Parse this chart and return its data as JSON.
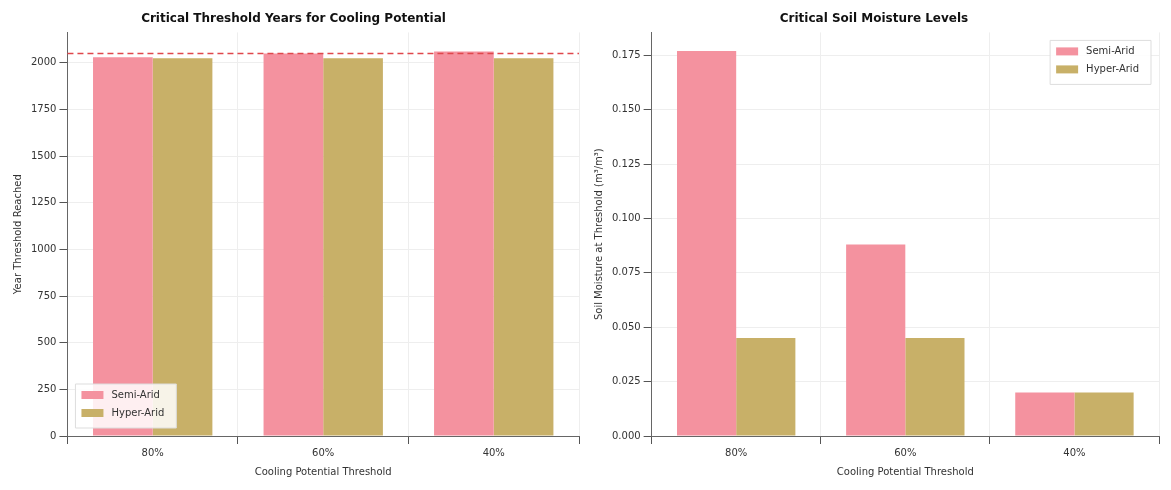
{
  "chart_data": [
    {
      "type": "bar",
      "title": "Critical Threshold Years for Cooling Potential",
      "xlabel": "Cooling Potential Threshold",
      "ylabel": "Year Threshold Reached",
      "categories": [
        "80%",
        "60%",
        "40%"
      ],
      "series": [
        {
          "name": "Semi-Arid",
          "color": "#f4929f",
          "values": [
            2030,
            2050,
            2060
          ]
        },
        {
          "name": "Hyper-Arid",
          "color": "#c8b068",
          "values": [
            2025,
            2025,
            2025
          ]
        }
      ],
      "ylim": [
        0,
        2163
      ],
      "yticks": [
        0,
        250,
        500,
        750,
        1000,
        1250,
        1500,
        1750,
        2000
      ],
      "ref_lines": [
        {
          "axis": "y",
          "value": 2050,
          "color": "#e0474c",
          "line_style": "dashed"
        }
      ],
      "grid": true,
      "legend": "bottom left"
    },
    {
      "type": "bar",
      "title": "Critical Soil Moisture Levels",
      "xlabel": "Cooling Potential Threshold",
      "ylabel": "Soil Moisture at Threshold (m³/m³)",
      "categories": [
        "80%",
        "60%",
        "40%"
      ],
      "series": [
        {
          "name": "Semi-Arid",
          "color": "#f4929f",
          "values": [
            0.177,
            0.088,
            0.02
          ]
        },
        {
          "name": "Hyper-Arid",
          "color": "#c8b068",
          "values": [
            0.045,
            0.045,
            0.02
          ]
        }
      ],
      "ylim": [
        0,
        0.1855
      ],
      "yticks": [
        {
          "value": 0,
          "label": "0.000"
        },
        0.025,
        {
          "value": 0.05,
          "label": "0.050"
        },
        0.075,
        {
          "value": 0.1,
          "label": "0.100"
        },
        0.125,
        {
          "value": 0.15,
          "label": "0.150"
        },
        0.175
      ],
      "grid": true,
      "legend": "top right"
    }
  ]
}
